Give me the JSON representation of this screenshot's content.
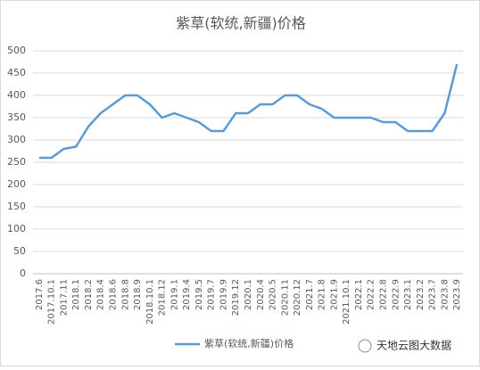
{
  "chart_data": {
    "type": "line",
    "title": "紫草(软统,新疆)价格",
    "categories": [
      "2017.6",
      "2017.10.1",
      "2017.11",
      "2018.1",
      "2018.2",
      "2018.4",
      "2018.6",
      "2018.8",
      "2018.9",
      "2018.10.1",
      "2018.12",
      "2019.1",
      "2019.4",
      "2019.5",
      "2019.7",
      "2019.9",
      "2019.12",
      "2020.1",
      "2020.4",
      "2020.5",
      "2020.11",
      "2020.12",
      "2021.7",
      "2021.8",
      "2021.9",
      "2021.10.1",
      "2022.1",
      "2022.2",
      "2022.8",
      "2022.9",
      "2023.1",
      "2023.2",
      "2023.7",
      "2023.8",
      "2023.9"
    ],
    "series": [
      {
        "name": "紫草(软统,新疆)价格",
        "color": "#5b9bd5",
        "values": [
          260,
          260,
          280,
          285,
          330,
          360,
          380,
          400,
          400,
          380,
          350,
          360,
          350,
          340,
          320,
          320,
          360,
          360,
          380,
          380,
          400,
          400,
          380,
          370,
          350,
          350,
          350,
          350,
          340,
          340,
          320,
          320,
          320,
          360,
          470
        ]
      }
    ],
    "ylim": [
      0,
      500
    ],
    "yticks": [
      0,
      50,
      100,
      150,
      200,
      250,
      300,
      350,
      400,
      450,
      500
    ],
    "grid": true,
    "legend": "bottom",
    "watermark": "天地云图大数据"
  }
}
